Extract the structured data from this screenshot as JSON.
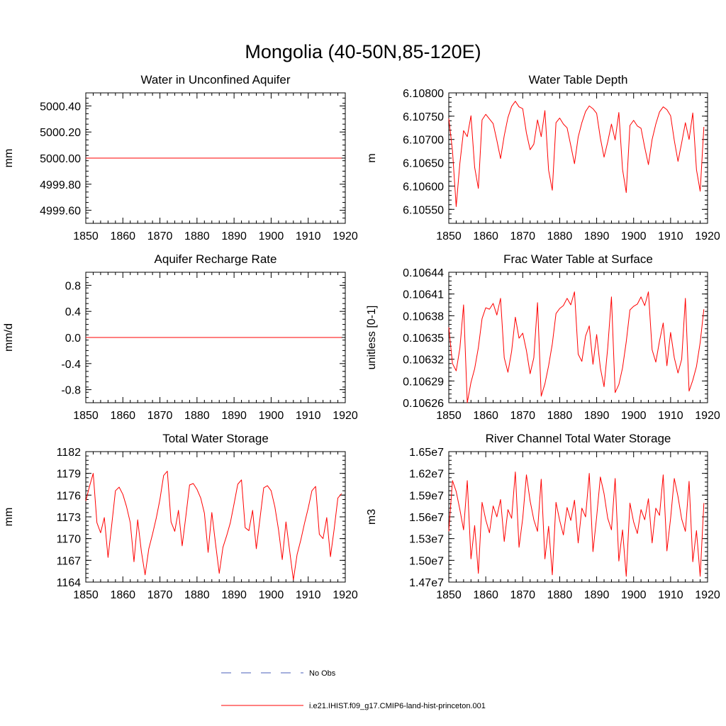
{
  "title": "Mongolia (40-50N,85-120E)",
  "chart_data": [
    {
      "type": "line",
      "title": "Water in Unconfined Aquifer",
      "ylabel": "mm",
      "xlim": [
        1850,
        1920
      ],
      "ylim": [
        4999.5,
        5000.5
      ],
      "xticks": [
        "1850",
        "1860",
        "1870",
        "1880",
        "1890",
        "1900",
        "1910",
        "1920"
      ],
      "yticks": [
        "4999.60",
        "4999.80",
        "5000.00",
        "5000.20",
        "5000.40"
      ],
      "x": [
        1850,
        1919
      ],
      "series": [
        {
          "values": [
            5000.0,
            5000.0
          ]
        }
      ]
    },
    {
      "type": "line",
      "title": "Water Table Depth",
      "ylabel": "m",
      "xlim": [
        1850,
        1920
      ],
      "ylim": [
        6.1052,
        6.108
      ],
      "xticks": [
        "1850",
        "1860",
        "1870",
        "1880",
        "1890",
        "1900",
        "1910",
        "1920"
      ],
      "yticks": [
        "6.10550",
        "6.10600",
        "6.10650",
        "6.10700",
        "6.10750",
        "6.10800"
      ],
      "x": [
        1850,
        1851,
        1852,
        1853,
        1854,
        1855,
        1856,
        1857,
        1858,
        1859,
        1860,
        1861,
        1862,
        1863,
        1864,
        1865,
        1866,
        1867,
        1868,
        1869,
        1870,
        1871,
        1872,
        1873,
        1874,
        1875,
        1876,
        1877,
        1878,
        1879,
        1880,
        1881,
        1882,
        1883,
        1884,
        1885,
        1886,
        1887,
        1888,
        1889,
        1890,
        1891,
        1892,
        1893,
        1894,
        1895,
        1896,
        1897,
        1898,
        1899,
        1900,
        1901,
        1902,
        1903,
        1904,
        1905,
        1906,
        1907,
        1908,
        1909,
        1910,
        1911,
        1912,
        1913,
        1914,
        1915,
        1916,
        1917,
        1918,
        1919
      ],
      "series": [
        {
          "values": [
            6.10745,
            6.10676,
            6.10556,
            6.10649,
            6.10719,
            6.10706,
            6.10751,
            6.1064,
            6.10595,
            6.10742,
            6.10754,
            6.10744,
            6.10734,
            6.10698,
            6.10659,
            6.10708,
            6.10747,
            6.10771,
            6.10782,
            6.1077,
            6.10766,
            6.10714,
            6.10678,
            6.1069,
            6.10742,
            6.10706,
            6.10762,
            6.10634,
            6.10591,
            6.10736,
            6.10746,
            6.10733,
            6.10725,
            6.10687,
            6.10648,
            6.10705,
            6.10736,
            6.1076,
            6.10772,
            6.10766,
            6.10756,
            6.10703,
            6.10662,
            6.10695,
            6.10733,
            6.10699,
            6.10758,
            6.10636,
            6.10586,
            6.1073,
            6.10741,
            6.10729,
            6.10724,
            6.10683,
            6.10646,
            6.107,
            6.10733,
            6.10759,
            6.1077,
            6.10764,
            6.10751,
            6.10698,
            6.10653,
            6.10693,
            6.10736,
            6.107,
            6.10757,
            6.10635,
            6.10589,
            6.10727
          ]
        }
      ]
    },
    {
      "type": "line",
      "title": "Aquifer Recharge Rate",
      "ylabel": "mm/d",
      "xlim": [
        1850,
        1920
      ],
      "ylim": [
        -1.0,
        1.0
      ],
      "xticks": [
        "1850",
        "1860",
        "1870",
        "1880",
        "1890",
        "1900",
        "1910",
        "1920"
      ],
      "yticks": [
        "-0.8",
        "-0.4",
        "0.0",
        "0.4",
        "0.8"
      ],
      "x": [
        1850,
        1919
      ],
      "series": [
        {
          "values": [
            0.0,
            0.0
          ]
        }
      ]
    },
    {
      "type": "line",
      "title": "Frac Water Table at Surface",
      "ylabel": "unitless [0-1]",
      "xlim": [
        1850,
        1920
      ],
      "ylim": [
        0.10626,
        0.10644
      ],
      "xticks": [
        "1850",
        "1860",
        "1870",
        "1880",
        "1890",
        "1900",
        "1910",
        "1920"
      ],
      "yticks": [
        "0.10626",
        "0.10629",
        "0.10632",
        "0.10635",
        "0.10638",
        "0.10641",
        "0.10644"
      ],
      "x": [
        1850,
        1851,
        1852,
        1853,
        1854,
        1855,
        1856,
        1857,
        1858,
        1859,
        1860,
        1861,
        1862,
        1863,
        1864,
        1865,
        1866,
        1867,
        1868,
        1869,
        1870,
        1871,
        1872,
        1873,
        1874,
        1875,
        1876,
        1877,
        1878,
        1879,
        1880,
        1881,
        1882,
        1883,
        1884,
        1885,
        1886,
        1887,
        1888,
        1889,
        1890,
        1891,
        1892,
        1893,
        1894,
        1895,
        1896,
        1897,
        1898,
        1899,
        1900,
        1901,
        1902,
        1903,
        1904,
        1905,
        1906,
        1907,
        1908,
        1909,
        1910,
        1911,
        1912,
        1913,
        1914,
        1915,
        1916,
        1917,
        1918,
        1919
      ],
      "series": [
        {
          "values": [
            0.106364,
            0.106314,
            0.106304,
            0.106335,
            0.106395,
            0.10626,
            0.106288,
            0.106307,
            0.106336,
            0.106376,
            0.106391,
            0.106389,
            0.106397,
            0.106381,
            0.106404,
            0.106322,
            0.106302,
            0.106331,
            0.106378,
            0.106349,
            0.106356,
            0.106332,
            0.1063,
            0.106322,
            0.106398,
            0.106269,
            0.106286,
            0.106311,
            0.106341,
            0.106383,
            0.10639,
            0.106394,
            0.106404,
            0.106395,
            0.106413,
            0.106327,
            0.106317,
            0.106352,
            0.106366,
            0.106313,
            0.106354,
            0.106308,
            0.106282,
            0.106336,
            0.106406,
            0.106274,
            0.106285,
            0.106308,
            0.106344,
            0.106388,
            0.106393,
            0.106396,
            0.106406,
            0.106394,
            0.106413,
            0.106333,
            0.106316,
            0.106345,
            0.10637,
            0.106311,
            0.106357,
            0.106322,
            0.106301,
            0.10632,
            0.106404,
            0.106276,
            0.106291,
            0.10631,
            0.106343,
            0.106389
          ]
        }
      ]
    },
    {
      "type": "line",
      "title": "Total Water Storage",
      "ylabel": "mm",
      "xlim": [
        1850,
        1920
      ],
      "ylim": [
        1164,
        1182
      ],
      "xticks": [
        "1850",
        "1860",
        "1870",
        "1880",
        "1890",
        "1900",
        "1910",
        "1920"
      ],
      "yticks": [
        "1164",
        "1167",
        "1170",
        "1173",
        "1176",
        "1179",
        "1182"
      ],
      "x": [
        1850,
        1851,
        1852,
        1853,
        1854,
        1855,
        1856,
        1857,
        1858,
        1859,
        1860,
        1861,
        1862,
        1863,
        1864,
        1865,
        1866,
        1867,
        1868,
        1869,
        1870,
        1871,
        1872,
        1873,
        1874,
        1875,
        1876,
        1877,
        1878,
        1879,
        1880,
        1881,
        1882,
        1883,
        1884,
        1885,
        1886,
        1887,
        1888,
        1889,
        1890,
        1891,
        1892,
        1893,
        1894,
        1895,
        1896,
        1897,
        1898,
        1899,
        1900,
        1901,
        1902,
        1903,
        1904,
        1905,
        1906,
        1907,
        1908,
        1909,
        1910,
        1911,
        1912,
        1913,
        1914,
        1915,
        1916,
        1917,
        1918,
        1919
      ],
      "series": [
        {
          "values": [
            1175.2,
            1177.2,
            1179.0,
            1172.2,
            1170.8,
            1172.9,
            1167.4,
            1171.9,
            1176.6,
            1177.1,
            1176.1,
            1174.4,
            1172.2,
            1166.8,
            1172.6,
            1168.2,
            1165.0,
            1168.6,
            1170.6,
            1172.8,
            1175.4,
            1178.7,
            1179.3,
            1172.3,
            1171.0,
            1173.9,
            1169.0,
            1173.1,
            1177.4,
            1177.6,
            1176.8,
            1175.6,
            1173.5,
            1168.1,
            1173.6,
            1169.3,
            1165.2,
            1168.8,
            1170.4,
            1172.2,
            1174.8,
            1177.5,
            1178.1,
            1171.5,
            1171.1,
            1173.9,
            1168.6,
            1172.8,
            1177.0,
            1177.3,
            1176.6,
            1174.4,
            1171.2,
            1167.1,
            1172.3,
            1168.3,
            1164.3,
            1167.8,
            1169.8,
            1172.1,
            1174.2,
            1176.6,
            1177.2,
            1170.6,
            1170.0,
            1172.9,
            1167.5,
            1171.3,
            1175.6,
            1176.2
          ]
        }
      ]
    },
    {
      "type": "line",
      "title": "River Channel Total Water Storage",
      "ylabel": "m3",
      "xlim": [
        1850,
        1920
      ],
      "ylim": [
        14700000.0,
        16500000.0
      ],
      "xticks": [
        "1850",
        "1860",
        "1870",
        "1880",
        "1890",
        "1900",
        "1910",
        "1920"
      ],
      "yticks": [
        "1.47e7",
        "1.50e7",
        "1.53e7",
        "1.56e7",
        "1.59e7",
        "1.62e7",
        "1.65e7"
      ],
      "x": [
        1850,
        1851,
        1852,
        1853,
        1854,
        1855,
        1856,
        1857,
        1858,
        1859,
        1860,
        1861,
        1862,
        1863,
        1864,
        1865,
        1866,
        1867,
        1868,
        1869,
        1870,
        1871,
        1872,
        1873,
        1874,
        1875,
        1876,
        1877,
        1878,
        1879,
        1880,
        1881,
        1882,
        1883,
        1884,
        1885,
        1886,
        1887,
        1888,
        1889,
        1890,
        1891,
        1892,
        1893,
        1894,
        1895,
        1896,
        1897,
        1898,
        1899,
        1900,
        1901,
        1902,
        1903,
        1904,
        1905,
        1906,
        1907,
        1908,
        1909,
        1910,
        1911,
        1912,
        1913,
        1914,
        1915,
        1916,
        1917,
        1918,
        1919
      ],
      "series": [
        {
          "values": [
            15400000,
            16100000,
            15950000,
            15700000,
            15420000,
            16100000,
            15020000,
            15480000,
            14820000,
            15800000,
            15560000,
            15380000,
            15750000,
            15600000,
            15840000,
            15260000,
            15700000,
            15580000,
            16220000,
            15180000,
            15580000,
            16180000,
            15820000,
            15560000,
            15400000,
            16120000,
            15020000,
            15470000,
            14800000,
            15800000,
            15550000,
            15350000,
            15730000,
            15550000,
            15830000,
            15240000,
            15720000,
            15600000,
            16200000,
            15120000,
            15600000,
            16150000,
            15920000,
            15580000,
            15420000,
            16130000,
            14990000,
            15420000,
            14780000,
            15790000,
            15530000,
            15370000,
            15700000,
            15560000,
            15850000,
            15240000,
            15720000,
            15620000,
            16180000,
            15130000,
            15580000,
            16130000,
            15880000,
            15570000,
            15400000,
            16090000,
            14980000,
            15410000,
            14780000,
            15790000
          ]
        }
      ]
    }
  ],
  "legend": {
    "items": [
      {
        "label": "No Obs",
        "color": "#4a5fb8",
        "style": "dashed"
      },
      {
        "label": "i.e21.IHIST.f09_g17.CMIP6-land-hist-princeton.001",
        "color": "#ff0000",
        "style": "solid"
      }
    ]
  }
}
